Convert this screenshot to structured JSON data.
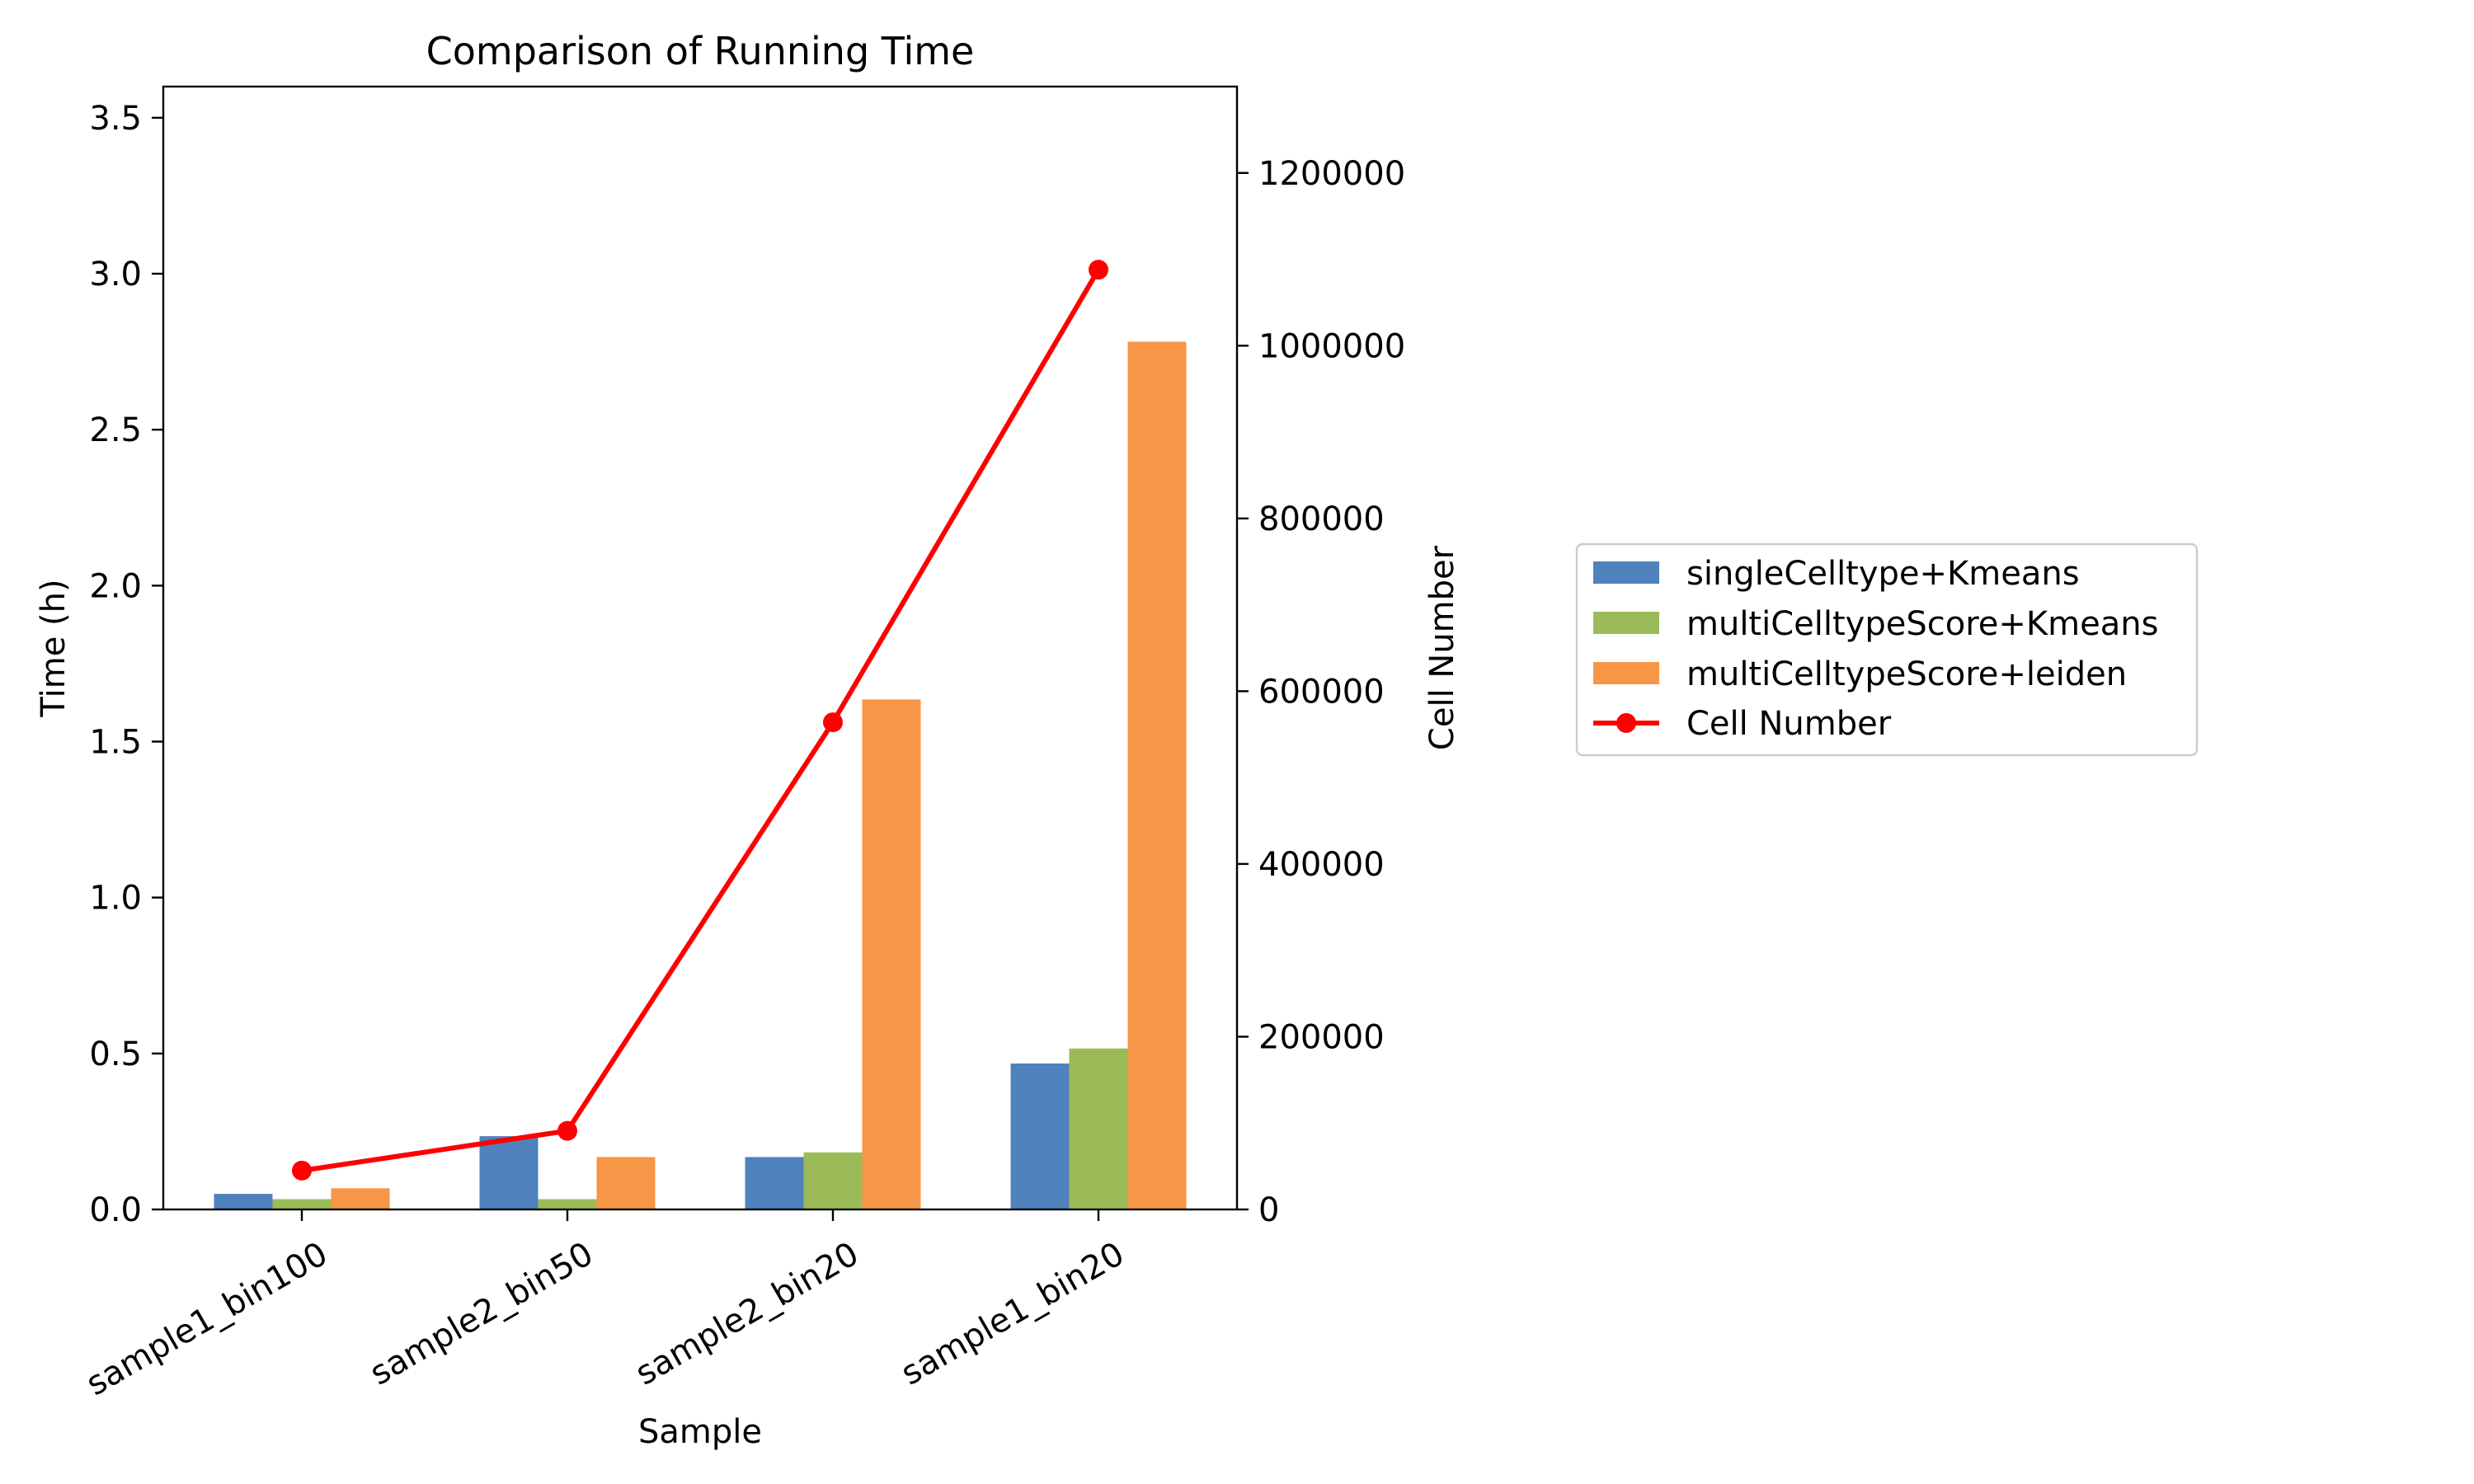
{
  "chart_data": {
    "type": "bar",
    "title": "Comparison of Running Time",
    "xlabel": "Sample",
    "ylabel": "Time (h)",
    "y2label": "Cell Number",
    "categories": [
      "sample1_bin100",
      "sample2_bin50",
      "sample2_bin20",
      "sample1_bin20"
    ],
    "ylim": [
      0,
      3.6
    ],
    "y2lim": [
      0,
      1300000
    ],
    "yticks": [
      "0.0",
      "0.5",
      "1.0",
      "1.5",
      "2.0",
      "2.5",
      "3.0",
      "3.5"
    ],
    "y2ticks": [
      "0",
      "200000",
      "400000",
      "600000",
      "800000",
      "1000000",
      "1200000"
    ],
    "series": [
      {
        "name": "singleCelltype+Kmeans",
        "type": "bar",
        "color": "#4f81bd",
        "values": [
          0.05,
          0.235,
          0.168,
          0.468
        ]
      },
      {
        "name": "multiCelltypeScore+Kmeans",
        "type": "bar",
        "color": "#9bbb59",
        "values": [
          0.033,
          0.033,
          0.183,
          0.516
        ]
      },
      {
        "name": "multiCelltypeScore+leiden",
        "type": "bar",
        "color": "#f79646",
        "values": [
          0.068,
          0.168,
          1.635,
          2.782
        ]
      },
      {
        "name": "Cell Number",
        "type": "line",
        "axis": "right",
        "color": "#ff0000",
        "values": [
          45000,
          91000,
          564000,
          1088000
        ]
      }
    ],
    "legend_position": "right",
    "grid": false
  }
}
